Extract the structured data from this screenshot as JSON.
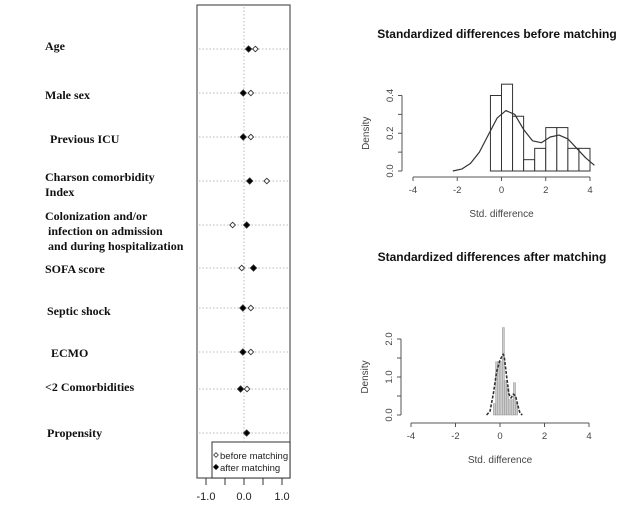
{
  "chart_data": [
    {
      "type": "scatter",
      "subtype": "dot-plot",
      "title": "",
      "xlabel": "",
      "ylabel": "",
      "xlim": [
        -1.2,
        1.25
      ],
      "x_ticks": [
        -1.0,
        -0.5,
        0.0,
        0.5,
        1.0
      ],
      "x_tick_labels": [
        "-1.0",
        "0.0",
        "1.0"
      ],
      "grid": true,
      "legend_position": "bottom-right",
      "categories": [
        [
          "Age"
        ],
        [
          "Male sex"
        ],
        [
          "Previous ICU"
        ],
        [
          "Charson comorbidity",
          "Index"
        ],
        [
          "Colonization and/or",
          " infection on admission",
          " and during hospitalization"
        ],
        [
          "SOFA score"
        ],
        [
          "Septic shock"
        ],
        [
          "ECMO"
        ],
        [
          "<2 Comorbidities"
        ],
        [
          "Propensity"
        ]
      ],
      "series": [
        {
          "name": "before matching",
          "marker": "open-diamond",
          "values": [
            0.3,
            0.18,
            0.18,
            0.6,
            -0.3,
            -0.06,
            0.18,
            0.18,
            0.08,
            null
          ]
        },
        {
          "name": "after matching",
          "marker": "filled-diamond",
          "values": [
            0.12,
            -0.02,
            -0.02,
            0.15,
            0.07,
            0.25,
            -0.03,
            -0.03,
            -0.09,
            0.07
          ]
        }
      ]
    },
    {
      "type": "bar",
      "subtype": "histogram-with-density",
      "title": "Standardized differences before matching",
      "xlabel": "Std. difference",
      "ylabel": "Density",
      "xlim": [
        -4,
        4
      ],
      "ylim": [
        0,
        0.4
      ],
      "x_ticks": [
        -4,
        -2,
        0,
        2,
        4
      ],
      "x_tick_labels": [
        "-4",
        "-2",
        "0",
        "2",
        "4"
      ],
      "y_ticks": [
        0,
        0.1,
        0.2,
        0.3,
        0.4
      ],
      "y_tick_labels": [
        "0.0",
        "0.2",
        "0.4"
      ],
      "bins": [
        [
          -0.5,
          0
        ],
        [
          0,
          0.5
        ],
        [
          0.5,
          1
        ],
        [
          1,
          1.5
        ],
        [
          1.5,
          2
        ],
        [
          2,
          2.5
        ],
        [
          2.5,
          3
        ],
        [
          3,
          3.5
        ],
        [
          3.5,
          4
        ]
      ],
      "values": [
        0.4,
        0.46,
        0.29,
        0.06,
        0.12,
        0.23,
        0.23,
        0.12,
        0.12
      ],
      "density_curve": {
        "x": [
          -2.2,
          -1.8,
          -1.4,
          -1.0,
          -0.6,
          -0.2,
          0.2,
          0.6,
          1.0,
          1.4,
          1.8,
          2.2,
          2.6,
          3.0,
          3.4,
          3.8,
          4.2
        ],
        "y": [
          0.0,
          0.01,
          0.04,
          0.1,
          0.19,
          0.28,
          0.32,
          0.3,
          0.22,
          0.16,
          0.15,
          0.18,
          0.19,
          0.17,
          0.12,
          0.07,
          0.03
        ]
      }
    },
    {
      "type": "bar",
      "subtype": "histogram-with-density",
      "title": "Standardized differences after matching",
      "xlabel": "Std. difference",
      "ylabel": "Density",
      "xlim": [
        -4,
        4
      ],
      "ylim": [
        0,
        2.0
      ],
      "x_ticks": [
        -4,
        -2,
        0,
        2,
        4
      ],
      "x_tick_labels": [
        "-4",
        "-2",
        "0",
        "2",
        "4"
      ],
      "y_ticks": [
        0,
        0.5,
        1.0,
        1.5,
        2.0
      ],
      "y_tick_labels": [
        "0.0",
        "1.0",
        "2.0"
      ],
      "bins": [
        [
          -0.3,
          -0.2
        ],
        [
          -0.2,
          -0.1
        ],
        [
          -0.1,
          0
        ],
        [
          0,
          0.1
        ],
        [
          0.1,
          0.2
        ],
        [
          0.2,
          0.3
        ],
        [
          0.3,
          0.4
        ],
        [
          0.4,
          0.5
        ],
        [
          0.5,
          0.6
        ],
        [
          0.6,
          0.7
        ],
        [
          0.7,
          0.8
        ]
      ],
      "values": [
        0.3,
        1.4,
        1.4,
        1.4,
        2.3,
        0.9,
        0.7,
        0.4,
        0.4,
        0.85,
        0.3
      ],
      "density_curve": {
        "x": [
          -0.6,
          -0.45,
          -0.3,
          -0.15,
          0.0,
          0.1,
          0.15,
          0.2,
          0.3,
          0.4,
          0.5,
          0.6,
          0.7,
          0.8,
          0.9,
          1.0
        ],
        "y": [
          0.0,
          0.1,
          0.55,
          1.15,
          1.45,
          1.55,
          1.6,
          1.5,
          1.0,
          0.55,
          0.45,
          0.55,
          0.5,
          0.25,
          0.05,
          0.0
        ]
      }
    }
  ]
}
